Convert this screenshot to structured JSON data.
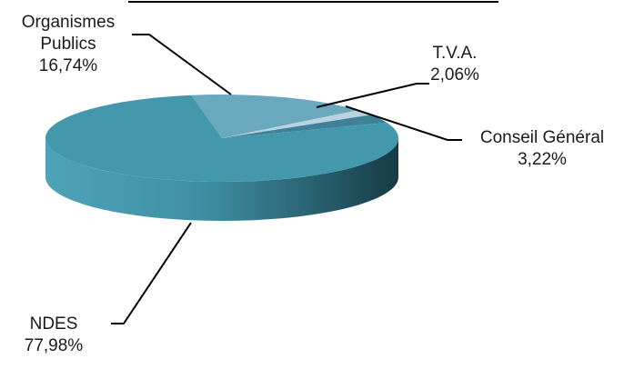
{
  "chart_data": {
    "type": "pie",
    "style": "3d",
    "slices": [
      {
        "label": "Organismes Publics",
        "label_lines": [
          "Organismes",
          "Publics"
        ],
        "value": 16.74,
        "value_text": "16,74%",
        "color": "#6aa9bd"
      },
      {
        "label": "T.V.A.",
        "label_lines": [
          "T.V.A."
        ],
        "value": 2.06,
        "value_text": "2,06%",
        "color": "#b9d3de"
      },
      {
        "label": "Conseil Général",
        "label_lines": [
          "Conseil Général"
        ],
        "value": 3.22,
        "value_text": "3,22%",
        "color": "#3d8298"
      },
      {
        "label": "NDES",
        "label_lines": [
          "NDES"
        ],
        "value": 77.98,
        "value_text": "77,98%",
        "color": "#4498ac"
      }
    ],
    "legend": "none",
    "data_labels": "outside with leader lines"
  },
  "colors": {
    "side_light": "#4da3b8",
    "side_dark": "#173a46",
    "leader_line": "#000000",
    "top_rule": "#000000"
  }
}
